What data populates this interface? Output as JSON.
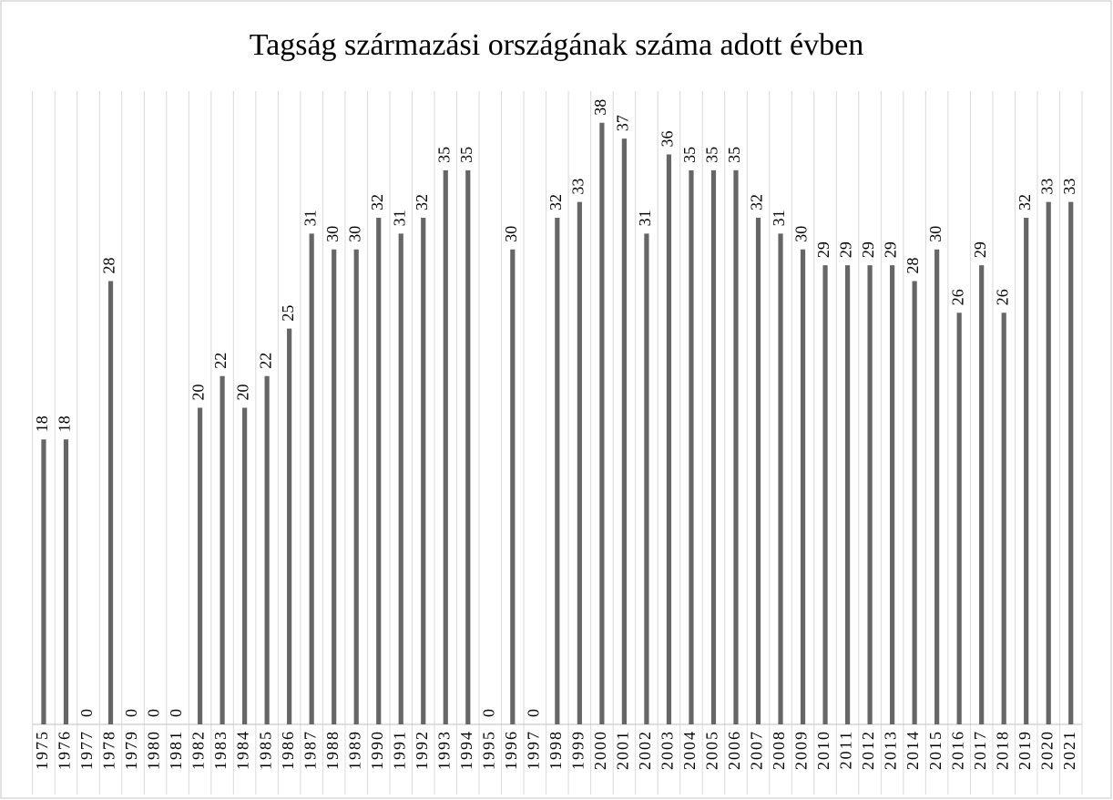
{
  "chart_data": {
    "type": "bar",
    "title": "Tagság származási országának száma adott évben",
    "categories": [
      "1975",
      "1976",
      "1977",
      "1978",
      "1979",
      "1980",
      "1981",
      "1982",
      "1983",
      "1984",
      "1985",
      "1986",
      "1987",
      "1988",
      "1989",
      "1990",
      "1991",
      "1992",
      "1993",
      "1994",
      "1995",
      "1996",
      "1997",
      "1998",
      "1999",
      "2000",
      "2001",
      "2002",
      "2003",
      "2004",
      "2005",
      "2006",
      "2007",
      "2008",
      "2009",
      "2010",
      "2011",
      "2012",
      "2013",
      "2014",
      "2015",
      "2016",
      "2017",
      "2018",
      "2019",
      "2020",
      "2021"
    ],
    "values": [
      18,
      18,
      0,
      28,
      0,
      0,
      0,
      20,
      22,
      20,
      22,
      25,
      31,
      30,
      30,
      32,
      31,
      32,
      35,
      35,
      0,
      30,
      0,
      32,
      33,
      38,
      37,
      31,
      36,
      35,
      35,
      35,
      32,
      31,
      30,
      29,
      29,
      29,
      29,
      28,
      30,
      26,
      29,
      26,
      32,
      33,
      33
    ],
    "color": "#666666",
    "ylim": [
      0,
      40
    ],
    "grid": true
  }
}
